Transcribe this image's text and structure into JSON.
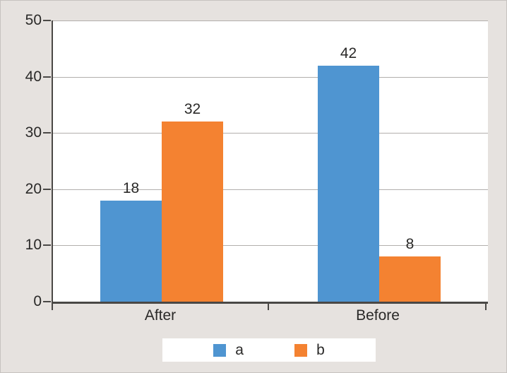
{
  "chart_data": {
    "type": "bar",
    "title": "",
    "xlabel": "",
    "ylabel": "",
    "categories": [
      "After",
      "Before"
    ],
    "series": [
      {
        "name": "a",
        "color": "#4f95d1",
        "values": [
          18,
          42
        ]
      },
      {
        "name": "b",
        "color": "#f48231",
        "values": [
          32,
          8
        ]
      }
    ],
    "ylim": [
      0,
      50
    ],
    "yticks": [
      0,
      10,
      20,
      30,
      40,
      50
    ],
    "grid": true,
    "legend_position": "bottom"
  },
  "colors": {
    "background": "#e6e2df",
    "plot_background": "#ffffff",
    "gridline": "#b2afac",
    "axis": "#4a4846",
    "text": "#2a2928"
  }
}
